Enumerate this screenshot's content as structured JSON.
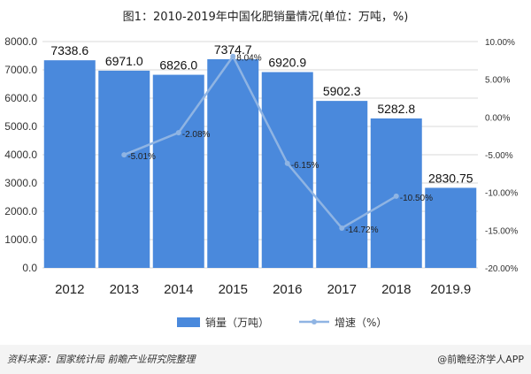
{
  "title": "图1：2010-2019年中国化肥销量情况(单位：万吨，%)",
  "footer": {
    "source": "资料来源：国家统计局 前瞻产业研究院整理",
    "brand": "@前瞻经济学人APP"
  },
  "chart_data": {
    "type": "bar",
    "categories": [
      "2012",
      "2013",
      "2014",
      "2015",
      "2016",
      "2017",
      "2018",
      "2019.9"
    ],
    "series": [
      {
        "name": "销量（万吨）",
        "type": "bar",
        "axis": "left",
        "values": [
          7338.6,
          6971.0,
          6826.0,
          7374.7,
          6920.9,
          5902.3,
          5282.8,
          2830.75
        ],
        "labels": [
          "7338.6",
          "6971.0",
          "6826.0",
          "7374.7",
          "6920.9",
          "5902.3",
          "5282.8",
          "2830.75"
        ],
        "color": "#4a89dc"
      },
      {
        "name": "增速（%）",
        "type": "line",
        "axis": "right",
        "x": [
          "2013",
          "2014",
          "2015",
          "2016",
          "2017",
          "2018"
        ],
        "values": [
          -5.01,
          -2.08,
          8.04,
          -6.15,
          -14.72,
          -10.5
        ],
        "labels": [
          "-5.01%",
          "-2.08%",
          "8.04%",
          "-6.15%",
          "-14.72%",
          "-10.50%"
        ],
        "color": "#8fb4e3"
      }
    ],
    "y_left": {
      "range": [
        0,
        8000
      ],
      "ticks": [
        "0.0",
        "1000.0",
        "2000.0",
        "3000.0",
        "4000.0",
        "5000.0",
        "6000.0",
        "7000.0",
        "8000.0"
      ]
    },
    "y_right": {
      "range": [
        -20,
        10
      ],
      "ticks": [
        "-20.00%",
        "-15.00%",
        "-10.00%",
        "-5.00%",
        "0.00%",
        "5.00%",
        "10.00%"
      ]
    },
    "grid": true,
    "legend_position": "bottom"
  }
}
